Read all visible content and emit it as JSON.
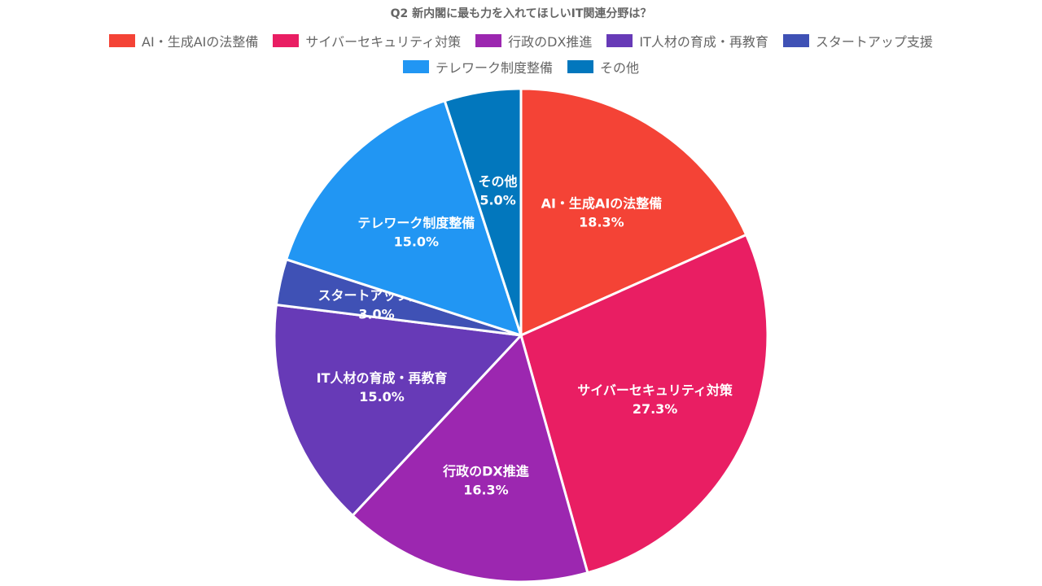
{
  "chart_data": {
    "type": "pie",
    "title": "Q2 新内閣に最も力を入れてほしいIT関連分野は？",
    "legend_position": "top",
    "categories": [
      "AI・生成AIの法整備",
      "サイバーセキュリティ対策",
      "行政のDX推進",
      "IT人材の育成・再教育",
      "スタートアップ支援",
      "テレワーク制度整備",
      "その他"
    ],
    "values": [
      18.3,
      27.3,
      16.3,
      15.0,
      3.0,
      15.0,
      5.0
    ],
    "value_labels": [
      "18.3%",
      "27.3%",
      "16.3%",
      "15.0%",
      "3.0%",
      "15.0%",
      "5.0%"
    ],
    "colors": [
      "#F44336",
      "#E91E63",
      "#9C27B0",
      "#673AB7",
      "#3F51B5",
      "#2196F3",
      "#0277BD"
    ]
  }
}
